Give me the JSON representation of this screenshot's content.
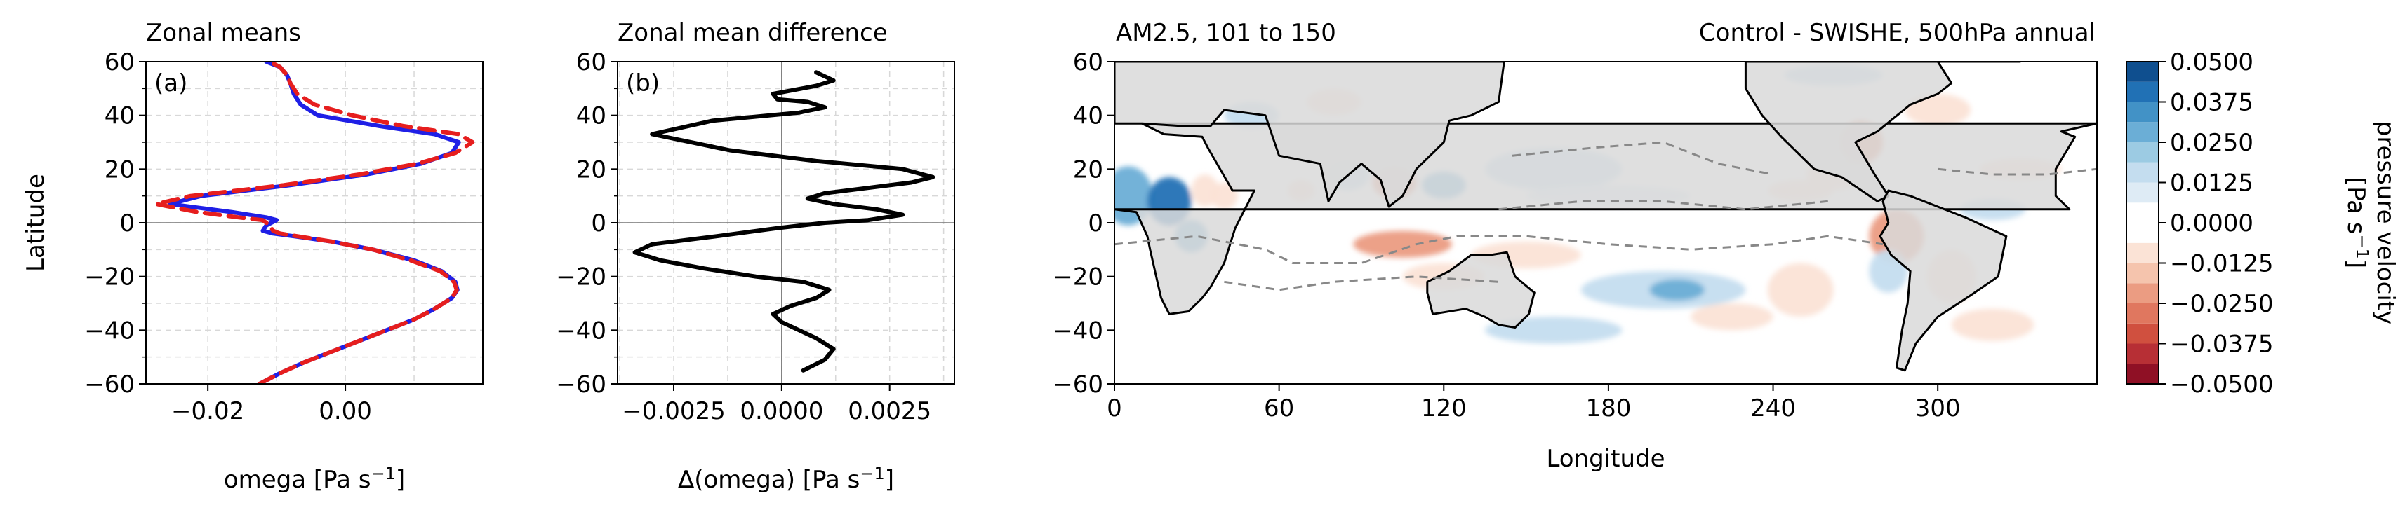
{
  "chart_data": [
    {
      "type": "line",
      "panel": "(a)",
      "title": "Zonal means",
      "xlabel": "omega [Pa s",
      "xlabel_sup": "−1",
      "xlabel_end": "]",
      "ylabel": "Latitude",
      "xlim": [
        -0.029,
        0.02
      ],
      "ylim": [
        -60,
        60
      ],
      "xticks": [
        -0.02,
        0.0
      ],
      "xtick_labels": [
        "−0.02",
        "0.00"
      ],
      "yticks": [
        -60,
        -40,
        -20,
        0,
        20,
        40,
        60
      ],
      "ytick_labels": [
        "−60",
        "−40",
        "−20",
        "0",
        "20",
        "40",
        "60"
      ],
      "grid": true,
      "series": [
        {
          "color": "#1f1fe6",
          "style": "solid",
          "x": [
            -0.0125,
            -0.0095,
            -0.006,
            -0.002,
            0.002,
            0.006,
            0.01,
            0.013,
            0.0155,
            0.0163,
            0.016,
            0.014,
            0.01,
            0.004,
            -0.002,
            -0.0075,
            -0.0105,
            -0.012,
            -0.0115,
            -0.01,
            -0.0115,
            -0.0165,
            -0.0255,
            -0.021,
            -0.008,
            0.003,
            0.011,
            0.0155,
            0.0165,
            0.013,
            0.005,
            -0.004,
            -0.0065,
            -0.0075,
            -0.008,
            -0.0085,
            -0.0095,
            -0.0115
          ],
          "y": [
            -60,
            -56,
            -52,
            -48,
            -44,
            -40,
            -36,
            -32,
            -28,
            -25,
            -22,
            -18,
            -14,
            -10,
            -7,
            -5,
            -4,
            -3,
            -1,
            1,
            2,
            4,
            7,
            10,
            14,
            18,
            22,
            26,
            30,
            33,
            36,
            40,
            44,
            48,
            52,
            55,
            58,
            60
          ]
        },
        {
          "color": "#e61e1e",
          "style": "dashed",
          "x": [
            -0.0125,
            -0.0095,
            -0.006,
            -0.002,
            0.002,
            0.006,
            0.01,
            0.013,
            0.0155,
            0.0162,
            0.0158,
            0.0138,
            0.0095,
            0.004,
            -0.002,
            -0.007,
            -0.0095,
            -0.0105,
            -0.011,
            -0.012,
            -0.0155,
            -0.0215,
            -0.0275,
            -0.0225,
            -0.009,
            0.002,
            0.0105,
            0.016,
            0.0185,
            0.0165,
            0.0085,
            0.001,
            -0.0045,
            -0.007,
            -0.008,
            -0.0085,
            -0.0095,
            -0.011
          ],
          "y": [
            -60,
            -56,
            -52,
            -48,
            -44,
            -40,
            -36,
            -32,
            -28,
            -25,
            -22,
            -18,
            -14,
            -10,
            -7,
            -5,
            -4,
            -3,
            -1,
            1,
            2,
            4,
            7,
            10,
            14,
            18,
            22,
            26,
            30,
            33,
            36,
            40,
            44,
            48,
            52,
            55,
            58,
            60
          ]
        }
      ]
    },
    {
      "type": "line",
      "panel": "(b)",
      "title": "Zonal mean difference",
      "xlabel": "Δ(omega) [Pa s",
      "xlabel_sup": "−1",
      "xlabel_end": "]",
      "xlim": [
        -0.0038,
        0.004
      ],
      "ylim": [
        -60,
        60
      ],
      "xticks": [
        -0.0025,
        0.0,
        0.0025
      ],
      "xtick_labels": [
        "−0.0025",
        "0.0000",
        "0.0025"
      ],
      "yticks": [
        -60,
        -40,
        -20,
        0,
        20,
        40,
        60
      ],
      "ytick_labels": [
        "−60",
        "−40",
        "−20",
        "0",
        "20",
        "40",
        "60"
      ],
      "grid": true,
      "series": [
        {
          "color": "#000000",
          "style": "solid",
          "x": [
            0.0005,
            0.001,
            0.0012,
            0.0008,
            0.0004,
            0.0,
            -0.0002,
            0.0002,
            0.0008,
            0.0011,
            0.0005,
            -0.0006,
            -0.0018,
            -0.0028,
            -0.0034,
            -0.003,
            -0.0015,
            -0.0001,
            0.001,
            0.002,
            0.0028,
            0.0022,
            0.0012,
            0.0006,
            0.001,
            0.002,
            0.003,
            0.0035,
            0.0028,
            0.0008,
            -0.0012,
            -0.003,
            -0.0016,
            0.0004,
            0.001,
            0.0006,
            -0.0001,
            -0.0002,
            0.0008,
            0.0012,
            0.0008
          ],
          "y": [
            -55,
            -51,
            -47,
            -43,
            -40,
            -37,
            -34,
            -31,
            -28,
            -25,
            -22,
            -20,
            -17,
            -14,
            -11,
            -8,
            -5,
            -2,
            0,
            1,
            3,
            5,
            7,
            9,
            11,
            13,
            15,
            17,
            20,
            23,
            27,
            33,
            38,
            41,
            43,
            45,
            46,
            48,
            51,
            53,
            56
          ]
        }
      ]
    },
    {
      "type": "heatmap",
      "title_left": "AM2.5, 101 to 150",
      "title_right": "Control - SWISHE, 500hPa annual",
      "xlabel": "Longitude",
      "xlim": [
        0,
        358
      ],
      "ylim": [
        -60,
        60
      ],
      "xticks": [
        0,
        60,
        120,
        180,
        240,
        300
      ],
      "xtick_labels": [
        "0",
        "60",
        "120",
        "180",
        "240",
        "300"
      ],
      "yticks": [
        -60,
        -40,
        -20,
        0,
        20,
        40,
        60
      ],
      "ytick_labels": [
        "−60",
        "−40",
        "−20",
        "0",
        "20",
        "40",
        "60"
      ],
      "land_color": "#d9d9d9",
      "colorbar": {
        "label_line1": "pressure velocity",
        "label_line2": "[Pa s",
        "label_sup": "−1",
        "label_end": "]",
        "levels": [
          -0.05,
          -0.04375,
          -0.0375,
          -0.03125,
          -0.025,
          -0.01875,
          -0.0125,
          -0.00625,
          0,
          0.00625,
          0.0125,
          0.01875,
          0.025,
          0.03125,
          0.0375,
          0.04375,
          0.05
        ],
        "colors": [
          "#8f1025",
          "#b72f35",
          "#d0503f",
          "#e0775f",
          "#eb9c82",
          "#f5c4ad",
          "#fbe3d6",
          "#ffffff",
          "#ffffff",
          "#deebf5",
          "#c4ddef",
          "#9ccbe3",
          "#6baed6",
          "#4292c6",
          "#2171b5",
          "#0f4f8f"
        ],
        "tick_values": [
          0.05,
          0.0375,
          0.025,
          0.0125,
          0,
          -0.0125,
          -0.025,
          -0.0375,
          -0.05
        ],
        "tick_labels": [
          "0.0500",
          "0.0375",
          "0.0250",
          "0.0125",
          "0.0000",
          "−0.0125",
          "−0.0250",
          "−0.0375",
          "−0.0500"
        ]
      },
      "blobs": [
        {
          "lon": 5,
          "lat": 10,
          "rx": 9,
          "ry": 11,
          "v": 0.025
        },
        {
          "lon": 20,
          "lat": 8,
          "rx": 8,
          "ry": 9,
          "v": 0.0375
        },
        {
          "lon": 28,
          "lat": -5,
          "rx": 6,
          "ry": 6,
          "v": 0.025
        },
        {
          "lon": 33,
          "lat": 12,
          "rx": 5,
          "ry": 6,
          "v": -0.0125
        },
        {
          "lon": 40,
          "lat": 10,
          "rx": 5,
          "ry": 5,
          "v": -0.0125
        },
        {
          "lon": 68,
          "lat": 12,
          "rx": 5,
          "ry": 4,
          "v": -0.0125
        },
        {
          "lon": 85,
          "lat": 18,
          "rx": 8,
          "ry": 6,
          "v": 0.0125
        },
        {
          "lon": 102,
          "lat": 15,
          "rx": 8,
          "ry": 6,
          "v": -0.025
        },
        {
          "lon": 120,
          "lat": 14,
          "rx": 8,
          "ry": 5,
          "v": 0.025
        },
        {
          "lon": 160,
          "lat": 20,
          "rx": 25,
          "ry": 8,
          "v": 0.0125
        },
        {
          "lon": 180,
          "lat": 10,
          "rx": 30,
          "ry": 4,
          "v": 0.00625
        },
        {
          "lon": 105,
          "lat": -8,
          "rx": 18,
          "ry": 5,
          "v": -0.025
        },
        {
          "lon": 150,
          "lat": -12,
          "rx": 20,
          "ry": 5,
          "v": -0.0125
        },
        {
          "lon": 120,
          "lat": -20,
          "rx": 15,
          "ry": 5,
          "v": -0.0125
        },
        {
          "lon": 160,
          "lat": -40,
          "rx": 25,
          "ry": 5,
          "v": 0.0125
        },
        {
          "lon": 200,
          "lat": -25,
          "rx": 30,
          "ry": 7,
          "v": 0.0125
        },
        {
          "lon": 205,
          "lat": -25,
          "rx": 10,
          "ry": 4,
          "v": 0.025
        },
        {
          "lon": 225,
          "lat": -35,
          "rx": 15,
          "ry": 5,
          "v": -0.0125
        },
        {
          "lon": 250,
          "lat": -25,
          "rx": 12,
          "ry": 10,
          "v": -0.0125
        },
        {
          "lon": 262,
          "lat": 18,
          "rx": 10,
          "ry": 6,
          "v": -0.0125
        },
        {
          "lon": 272,
          "lat": 30,
          "rx": 8,
          "ry": 8,
          "v": -0.025
        },
        {
          "lon": 250,
          "lat": 12,
          "rx": 12,
          "ry": 4,
          "v": -0.0125
        },
        {
          "lon": 285,
          "lat": -5,
          "rx": 10,
          "ry": 10,
          "v": -0.025
        },
        {
          "lon": 282,
          "lat": -18,
          "rx": 7,
          "ry": 8,
          "v": 0.0125
        },
        {
          "lon": 305,
          "lat": -20,
          "rx": 9,
          "ry": 10,
          "v": -0.0125
        },
        {
          "lon": 320,
          "lat": -38,
          "rx": 15,
          "ry": 6,
          "v": -0.0125
        },
        {
          "lon": 330,
          "lat": 20,
          "rx": 15,
          "ry": 4,
          "v": -0.0125
        },
        {
          "lon": 320,
          "lat": 5,
          "rx": 12,
          "ry": 4,
          "v": 0.0125
        },
        {
          "lon": 262,
          "lat": 55,
          "rx": 18,
          "ry": 4,
          "v": 0.0125
        },
        {
          "lon": 300,
          "lat": 42,
          "rx": 12,
          "ry": 6,
          "v": -0.0125
        },
        {
          "lon": 50,
          "lat": 40,
          "rx": 10,
          "ry": 5,
          "v": 0.0125
        },
        {
          "lon": 80,
          "lat": 45,
          "rx": 10,
          "ry": 5,
          "v": -0.0125
        }
      ],
      "dashed_contours": [
        [
          [
            0,
            -8
          ],
          [
            30,
            -5
          ],
          [
            55,
            -10
          ],
          [
            65,
            -15
          ],
          [
            90,
            -15
          ],
          [
            110,
            -8
          ],
          [
            125,
            -5
          ],
          [
            150,
            -5
          ],
          [
            180,
            -8
          ],
          [
            210,
            -10
          ],
          [
            240,
            -8
          ],
          [
            260,
            -5
          ],
          [
            280,
            -8
          ]
        ],
        [
          [
            40,
            -22
          ],
          [
            60,
            -25
          ],
          [
            80,
            -22
          ],
          [
            110,
            -20
          ],
          [
            140,
            -22
          ]
        ],
        [
          [
            145,
            25
          ],
          [
            175,
            28
          ],
          [
            200,
            30
          ],
          [
            220,
            22
          ],
          [
            240,
            18
          ]
        ],
        [
          [
            140,
            5
          ],
          [
            170,
            8
          ],
          [
            200,
            8
          ],
          [
            230,
            5
          ],
          [
            260,
            8
          ]
        ],
        [
          [
            300,
            20
          ],
          [
            320,
            18
          ],
          [
            340,
            18
          ],
          [
            358,
            20
          ]
        ]
      ],
      "land": [
        [
          [
            345,
            34
          ],
          [
            358,
            37
          ],
          [
            10,
            37
          ],
          [
            18,
            33
          ],
          [
            32,
            32
          ],
          [
            34,
            28
          ],
          [
            43,
            12
          ],
          [
            51,
            12
          ],
          [
            44,
            -2
          ],
          [
            40,
            -15
          ],
          [
            35,
            -24
          ],
          [
            32,
            -28
          ],
          [
            27,
            -33
          ],
          [
            20,
            -34
          ],
          [
            17,
            -28
          ],
          [
            13,
            -10
          ],
          [
            12,
            -5
          ],
          [
            8,
            4
          ],
          [
            0,
            5
          ],
          [
            348,
            5
          ],
          [
            343,
            10
          ],
          [
            343,
            20
          ],
          [
            350,
            32
          ]
        ],
        [
          [
            0,
            37
          ],
          [
            10,
            37
          ],
          [
            25,
            36
          ],
          [
            35,
            36
          ],
          [
            40,
            42
          ],
          [
            55,
            40
          ],
          [
            60,
            25
          ],
          [
            75,
            22
          ],
          [
            78,
            8
          ],
          [
            82,
            15
          ],
          [
            90,
            22
          ],
          [
            97,
            16
          ],
          [
            100,
            6
          ],
          [
            105,
            10
          ],
          [
            110,
            20
          ],
          [
            120,
            30
          ],
          [
            122,
            38
          ],
          [
            130,
            40
          ],
          [
            140,
            45
          ],
          [
            142,
            60
          ],
          [
            0,
            60
          ]
        ],
        [
          [
            114,
            -22
          ],
          [
            122,
            -18
          ],
          [
            130,
            -12
          ],
          [
            137,
            -12
          ],
          [
            143,
            -11
          ],
          [
            146,
            -20
          ],
          [
            153,
            -26
          ],
          [
            151,
            -34
          ],
          [
            146,
            -39
          ],
          [
            140,
            -38
          ],
          [
            135,
            -35
          ],
          [
            128,
            -32
          ],
          [
            116,
            -34
          ],
          [
            114,
            -26
          ]
        ],
        [
          [
            230,
            60
          ],
          [
            230,
            50
          ],
          [
            236,
            40
          ],
          [
            243,
            32
          ],
          [
            255,
            20
          ],
          [
            265,
            17
          ],
          [
            278,
            8
          ],
          [
            282,
            10
          ],
          [
            277,
            18
          ],
          [
            270,
            30
          ],
          [
            278,
            34
          ],
          [
            290,
            44
          ],
          [
            300,
            48
          ],
          [
            305,
            52
          ],
          [
            300,
            60
          ]
        ],
        [
          [
            282,
            12
          ],
          [
            290,
            10
          ],
          [
            300,
            6
          ],
          [
            310,
            2
          ],
          [
            325,
            -5
          ],
          [
            322,
            -20
          ],
          [
            312,
            -27
          ],
          [
            300,
            -35
          ],
          [
            292,
            -45
          ],
          [
            288,
            -55
          ],
          [
            285,
            -54
          ],
          [
            287,
            -40
          ],
          [
            289,
            -30
          ],
          [
            290,
            -18
          ],
          [
            283,
            -12
          ],
          [
            279,
            -5
          ],
          [
            282,
            0
          ],
          [
            280,
            8
          ]
        ],
        [
          [
            300,
            60
          ],
          [
            302,
            68
          ],
          [
            330,
            60
          ],
          [
            315,
            60
          ]
        ]
      ]
    }
  ]
}
